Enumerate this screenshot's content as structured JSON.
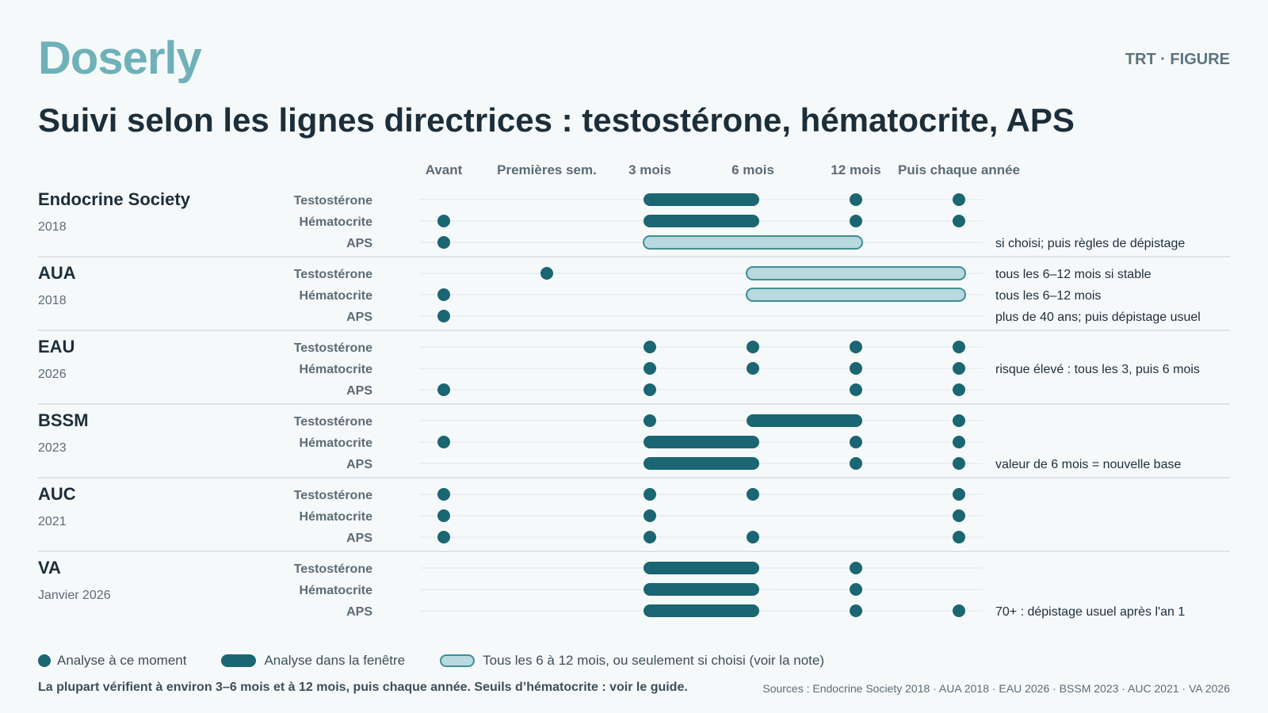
{
  "brand": "Doserly",
  "tag": "TRT · FIGURE",
  "title": "Suivi selon les lignes directrices : testostérone, hématocrite, APS",
  "colors": {
    "accent": "#1a6672",
    "accent_light": "#b8d9dd",
    "accent_light_border": "#3f8e97",
    "logo": "#6fb1b8"
  },
  "columns": [
    "Avant",
    "Premières sem.",
    "3 mois",
    "6 mois",
    "12 mois",
    "Puis chaque année"
  ],
  "guidelines": [
    {
      "name": "Endocrine Society",
      "year": "2018",
      "rows": [
        {
          "label": "Testostérone",
          "dots": [
            4,
            5
          ],
          "bars": [
            [
              2,
              3
            ]
          ],
          "light_bars": [],
          "note": ""
        },
        {
          "label": "Hématocrite",
          "dots": [
            0,
            4,
            5
          ],
          "bars": [
            [
              2,
              3
            ]
          ],
          "light_bars": [],
          "note": ""
        },
        {
          "label": "APS",
          "dots": [
            0
          ],
          "bars": [],
          "light_bars": [
            [
              2,
              4
            ]
          ],
          "note": "si choisi; puis règles de dépistage"
        }
      ]
    },
    {
      "name": "AUA",
      "year": "2018",
      "rows": [
        {
          "label": "Testostérone",
          "dots": [
            1
          ],
          "bars": [],
          "light_bars": [
            [
              3,
              5
            ]
          ],
          "note": "tous les 6–12 mois si stable"
        },
        {
          "label": "Hématocrite",
          "dots": [
            0
          ],
          "bars": [],
          "light_bars": [
            [
              3,
              5
            ]
          ],
          "note": "tous les 6–12 mois"
        },
        {
          "label": "APS",
          "dots": [
            0
          ],
          "bars": [],
          "light_bars": [],
          "note": "plus de 40 ans; puis dépistage usuel"
        }
      ]
    },
    {
      "name": "EAU",
      "year": "2026",
      "rows": [
        {
          "label": "Testostérone",
          "dots": [
            2,
            3,
            4,
            5
          ],
          "bars": [],
          "light_bars": [],
          "note": ""
        },
        {
          "label": "Hématocrite",
          "dots": [
            2,
            3,
            4,
            5
          ],
          "bars": [],
          "light_bars": [],
          "note": "risque élevé : tous les 3, puis 6 mois"
        },
        {
          "label": "APS",
          "dots": [
            0,
            2,
            4,
            5
          ],
          "bars": [],
          "light_bars": [],
          "note": ""
        }
      ]
    },
    {
      "name": "BSSM",
      "year": "2023",
      "rows": [
        {
          "label": "Testostérone",
          "dots": [
            2,
            5
          ],
          "bars": [
            [
              3,
              4
            ]
          ],
          "light_bars": [],
          "note": ""
        },
        {
          "label": "Hématocrite",
          "dots": [
            0,
            4,
            5
          ],
          "bars": [
            [
              2,
              3
            ]
          ],
          "light_bars": [],
          "note": ""
        },
        {
          "label": "APS",
          "dots": [
            4,
            5
          ],
          "bars": [
            [
              2,
              3
            ]
          ],
          "light_bars": [],
          "note": "valeur de 6 mois = nouvelle base"
        }
      ]
    },
    {
      "name": "AUC",
      "year": "2021",
      "rows": [
        {
          "label": "Testostérone",
          "dots": [
            0,
            2,
            3,
            5
          ],
          "bars": [],
          "light_bars": [],
          "note": ""
        },
        {
          "label": "Hématocrite",
          "dots": [
            0,
            2,
            5
          ],
          "bars": [],
          "light_bars": [],
          "note": ""
        },
        {
          "label": "APS",
          "dots": [
            0,
            2,
            3,
            5
          ],
          "bars": [],
          "light_bars": [],
          "note": ""
        }
      ]
    },
    {
      "name": "VA",
      "year": "Janvier 2026",
      "rows": [
        {
          "label": "Testostérone",
          "dots": [
            4
          ],
          "bars": [
            [
              2,
              3
            ]
          ],
          "light_bars": [],
          "note": ""
        },
        {
          "label": "Hématocrite",
          "dots": [
            4
          ],
          "bars": [
            [
              2,
              3
            ]
          ],
          "light_bars": [],
          "note": ""
        },
        {
          "label": "APS",
          "dots": [
            4,
            5
          ],
          "bars": [
            [
              2,
              3
            ]
          ],
          "light_bars": [],
          "note": "70+ : dépistage usuel après l'an 1"
        }
      ]
    }
  ],
  "legend": {
    "dot": "Analyse à ce moment",
    "bar": "Analyse dans la fenêtre",
    "light_bar": "Tous les 6 à 12 mois, ou seulement si choisi (voir la note)"
  },
  "footnote": "La plupart vérifient à environ 3–6 mois et à 12 mois, puis chaque année. Seuils d’hématocrite : voir le guide.",
  "sources": "Sources : Endocrine Society 2018 · AUA 2018 · EAU 2026 · BSSM 2023 · AUC 2021 · VA 2026"
}
